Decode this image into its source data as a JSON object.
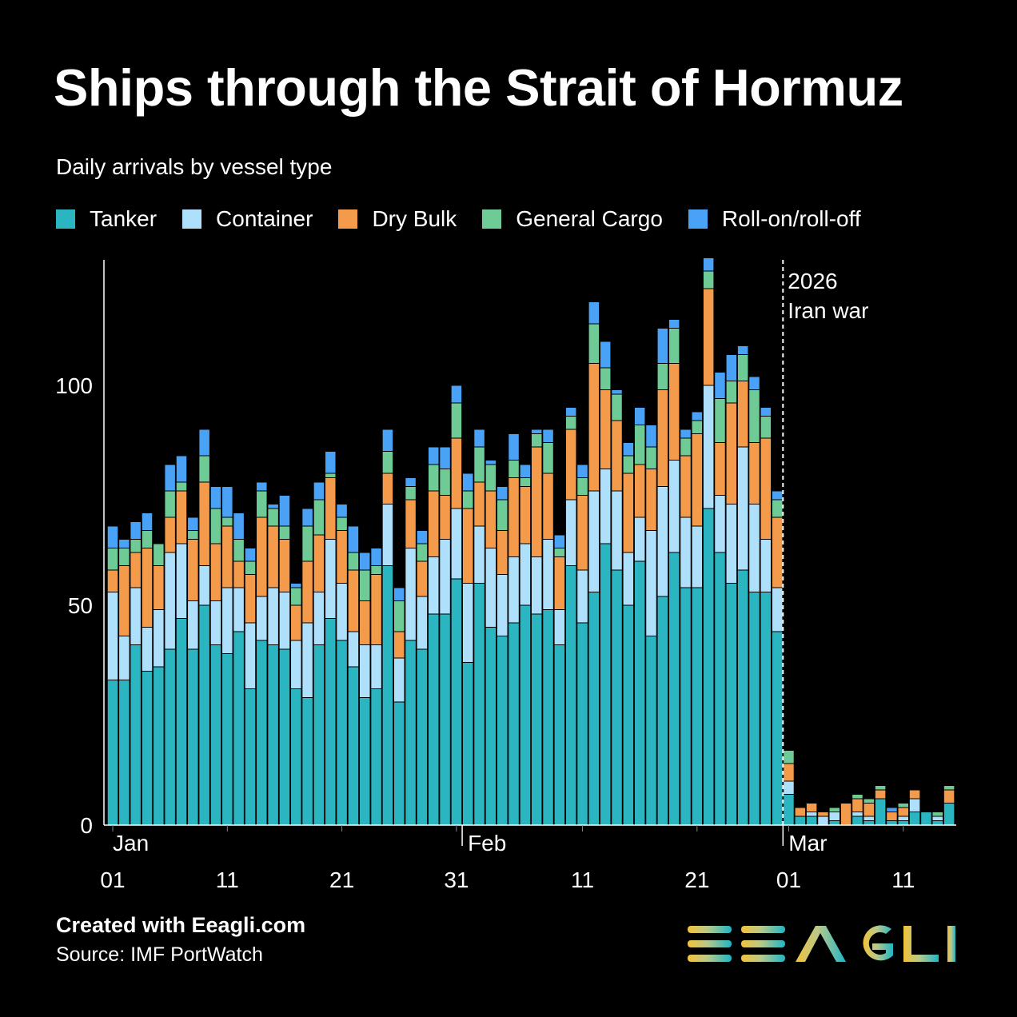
{
  "title": "Ships through the Strait of Hormuz",
  "subtitle": "Daily arrivals by vessel type",
  "footer": {
    "credit": "Created with Eeagli.com",
    "source": "Source: IMF PortWatch",
    "logo_text": "EEAGLI"
  },
  "chart_data": {
    "type": "bar",
    "stacked": true,
    "title": "Ships through the Strait of Hormuz",
    "subtitle": "Daily arrivals by vessel type",
    "x_start": "2026-01-01",
    "x_end": "2026-03-15",
    "ylim": [
      0,
      129
    ],
    "yticks": [
      "0",
      "50",
      "100"
    ],
    "grid": false,
    "legend": "top",
    "month_labels": [
      {
        "label": "Jan",
        "day": 1
      },
      {
        "label": "Feb",
        "day": 32
      },
      {
        "label": "Mar",
        "day": 60
      }
    ],
    "day_labels": [
      {
        "label": "01",
        "day": 1
      },
      {
        "label": "11",
        "day": 11
      },
      {
        "label": "21",
        "day": 21
      },
      {
        "label": "31",
        "day": 31
      },
      {
        "label": "11",
        "day": 42
      },
      {
        "label": "21",
        "day": 52
      },
      {
        "label": "01",
        "day": 60
      },
      {
        "label": "11",
        "day": 70
      }
    ],
    "annotation": {
      "line1": "2026",
      "line2": "Iran war",
      "date": "2026-03-01"
    },
    "series": [
      {
        "name": "Tanker",
        "color": "#2bb5c1",
        "values": [
          33,
          33,
          41,
          35,
          36,
          40,
          47,
          40,
          50,
          41,
          39,
          44,
          31,
          42,
          41,
          40,
          31,
          29,
          41,
          47,
          42,
          36,
          29,
          31,
          59,
          28,
          42,
          40,
          48,
          48,
          56,
          37,
          55,
          45,
          43,
          46,
          50,
          48,
          49,
          41,
          59,
          46,
          53,
          64,
          58,
          50,
          60,
          43,
          52,
          62,
          54,
          54,
          72,
          62,
          55,
          58,
          53,
          53,
          44,
          7,
          2,
          2,
          0,
          1,
          0,
          2,
          1,
          6,
          1,
          1,
          3,
          3,
          1,
          5
        ]
      },
      {
        "name": "Container",
        "color": "#aee0fb",
        "values": [
          20,
          10,
          13,
          10,
          13,
          22,
          17,
          11,
          9,
          10,
          15,
          10,
          15,
          10,
          13,
          13,
          11,
          17,
          12,
          18,
          13,
          8,
          12,
          10,
          14,
          10,
          21,
          12,
          13,
          17,
          16,
          18,
          13,
          18,
          14,
          15,
          14,
          13,
          16,
          8,
          15,
          12,
          23,
          17,
          18,
          12,
          10,
          24,
          25,
          21,
          16,
          14,
          28,
          13,
          18,
          28,
          20,
          12,
          10,
          3,
          0,
          1,
          2,
          2,
          0,
          1,
          1,
          0,
          0,
          1,
          3,
          0,
          1,
          0
        ]
      },
      {
        "name": "Dry Bulk",
        "color": "#f49a4b",
        "values": [
          5,
          16,
          8,
          18,
          10,
          8,
          12,
          14,
          19,
          13,
          14,
          6,
          11,
          18,
          14,
          12,
          8,
          14,
          13,
          14,
          12,
          14,
          10,
          16,
          7,
          6,
          11,
          8,
          15,
          10,
          16,
          17,
          10,
          13,
          10,
          18,
          13,
          25,
          15,
          12,
          16,
          17,
          29,
          18,
          16,
          18,
          12,
          14,
          22,
          22,
          14,
          21,
          22,
          12,
          23,
          15,
          14,
          23,
          16,
          4,
          2,
          2,
          1,
          0,
          5,
          3,
          3,
          2,
          2,
          2,
          2,
          0,
          0,
          3
        ]
      },
      {
        "name": "General Cargo",
        "color": "#6fcb96",
        "values": [
          5,
          4,
          3,
          4,
          5,
          6,
          2,
          2,
          6,
          8,
          2,
          5,
          3,
          6,
          4,
          3,
          4,
          8,
          8,
          1,
          3,
          4,
          7,
          2,
          5,
          7,
          3,
          4,
          6,
          6,
          8,
          4,
          8,
          6,
          7,
          4,
          2,
          3,
          7,
          2,
          3,
          4,
          9,
          5,
          6,
          4,
          9,
          5,
          6,
          8,
          4,
          3,
          4,
          10,
          5,
          6,
          12,
          5,
          4,
          3,
          0,
          0,
          0,
          1,
          0,
          1,
          1,
          1,
          0,
          1,
          0,
          0,
          1,
          1
        ]
      },
      {
        "name": "Roll-on/roll-off",
        "color": "#4aa2f6",
        "values": [
          5,
          2,
          4,
          4,
          0,
          6,
          6,
          3,
          6,
          5,
          7,
          6,
          3,
          2,
          1,
          7,
          1,
          4,
          4,
          5,
          3,
          6,
          4,
          4,
          5,
          3,
          2,
          3,
          4,
          5,
          4,
          4,
          4,
          1,
          3,
          6,
          3,
          1,
          3,
          3,
          2,
          3,
          5,
          6,
          1,
          3,
          4,
          5,
          8,
          2,
          2,
          2,
          3,
          6,
          6,
          2,
          3,
          2,
          2,
          0,
          0,
          0,
          0,
          0,
          0,
          0,
          0,
          0,
          1,
          0,
          0,
          0,
          0,
          0
        ]
      }
    ]
  }
}
